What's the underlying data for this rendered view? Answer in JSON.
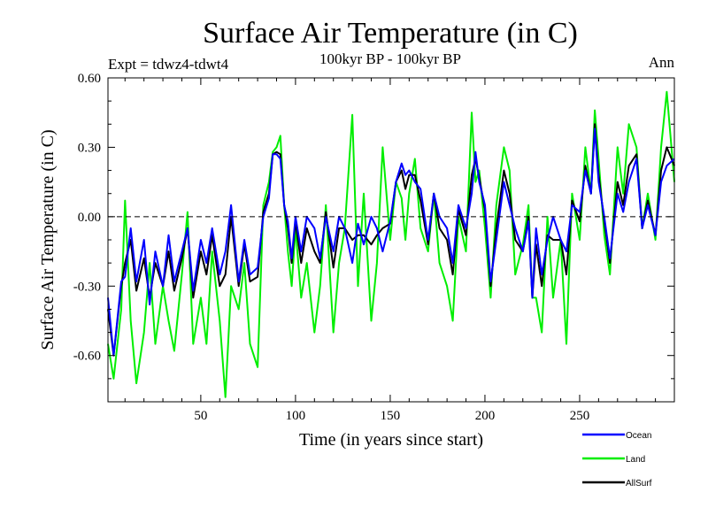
{
  "chart_data": {
    "type": "line",
    "title": "Surface Air Temperature (in C)",
    "subtitle": "100kyr BP - 100kyr BP",
    "left_note": "Expt = tdwz4-tdwt4",
    "right_note": "Ann",
    "xlabel": "Time (in years since start)",
    "ylabel": "Surface Air Temperature (in C)",
    "xlim": [
      1,
      300
    ],
    "ylim": [
      -0.8,
      0.6
    ],
    "xticks": [
      50,
      100,
      150,
      200,
      250
    ],
    "xtick_labels": [
      "50",
      "100",
      "150",
      "200",
      "250"
    ],
    "yticks": [
      -0.6,
      -0.3,
      0.0,
      0.3,
      0.6
    ],
    "ytick_labels": [
      "-0.60",
      "-0.30",
      "0.00",
      "0.30",
      "0.60"
    ],
    "zero_line": true,
    "grid": false,
    "legend_position": "bottom-right",
    "series": [
      {
        "name": "Ocean",
        "color": "#0000ff",
        "x": [
          1,
          4,
          8,
          10,
          13,
          16,
          20,
          23,
          26,
          30,
          33,
          36,
          40,
          43,
          46,
          50,
          53,
          56,
          60,
          63,
          66,
          70,
          73,
          76,
          80,
          83,
          86,
          88,
          90,
          92,
          94,
          96,
          98,
          100,
          103,
          106,
          110,
          113,
          116,
          120,
          123,
          126,
          130,
          133,
          136,
          140,
          143,
          146,
          150,
          153,
          156,
          158,
          160,
          163,
          166,
          170,
          173,
          176,
          180,
          183,
          186,
          190,
          193,
          195,
          197,
          200,
          203,
          206,
          210,
          213,
          216,
          220,
          223,
          225,
          227,
          230,
          233,
          236,
          240,
          243,
          246,
          250,
          253,
          256,
          258,
          260,
          263,
          266,
          270,
          273,
          276,
          280,
          283,
          286,
          290,
          293,
          296,
          300
        ],
        "y": [
          -0.35,
          -0.6,
          -0.28,
          -0.26,
          -0.05,
          -0.28,
          -0.1,
          -0.38,
          -0.15,
          -0.3,
          -0.08,
          -0.28,
          -0.15,
          -0.05,
          -0.32,
          -0.1,
          -0.2,
          -0.05,
          -0.25,
          -0.15,
          0.05,
          -0.28,
          -0.1,
          -0.25,
          -0.22,
          0.0,
          0.08,
          0.27,
          0.27,
          0.25,
          0.05,
          -0.02,
          -0.18,
          0.0,
          -0.15,
          0.0,
          -0.05,
          -0.18,
          0.0,
          -0.15,
          0.0,
          -0.05,
          -0.2,
          -0.03,
          -0.12,
          0.0,
          -0.05,
          -0.15,
          -0.02,
          0.15,
          0.23,
          0.18,
          0.2,
          0.15,
          0.12,
          -0.1,
          0.1,
          0.0,
          -0.05,
          -0.2,
          0.05,
          -0.05,
          0.1,
          0.28,
          0.15,
          0.05,
          -0.28,
          -0.1,
          0.15,
          0.05,
          -0.05,
          -0.15,
          -0.02,
          -0.35,
          -0.05,
          -0.25,
          -0.1,
          0.0,
          -0.1,
          -0.15,
          0.05,
          0.02,
          0.2,
          0.1,
          0.38,
          0.15,
          0.0,
          -0.18,
          0.1,
          0.02,
          0.15,
          0.25,
          -0.05,
          0.05,
          -0.08,
          0.15,
          0.22,
          0.25
        ]
      },
      {
        "name": "Land",
        "color": "#00ee00",
        "x": [
          1,
          4,
          8,
          10,
          13,
          16,
          20,
          23,
          26,
          30,
          33,
          36,
          40,
          43,
          46,
          50,
          53,
          56,
          60,
          63,
          66,
          70,
          73,
          76,
          80,
          83,
          86,
          88,
          90,
          92,
          94,
          96,
          98,
          100,
          103,
          106,
          110,
          113,
          116,
          120,
          123,
          126,
          130,
          133,
          136,
          140,
          143,
          146,
          150,
          153,
          156,
          158,
          160,
          163,
          166,
          170,
          173,
          176,
          180,
          183,
          186,
          190,
          193,
          195,
          197,
          200,
          203,
          206,
          210,
          213,
          216,
          220,
          223,
          225,
          227,
          230,
          233,
          236,
          240,
          243,
          246,
          250,
          253,
          256,
          258,
          260,
          263,
          266,
          270,
          273,
          276,
          280,
          283,
          286,
          290,
          293,
          296,
          300
        ],
        "y": [
          -0.55,
          -0.7,
          -0.4,
          0.07,
          -0.45,
          -0.72,
          -0.5,
          -0.2,
          -0.55,
          -0.3,
          -0.45,
          -0.58,
          -0.25,
          0.02,
          -0.55,
          -0.35,
          -0.55,
          -0.15,
          -0.45,
          -0.78,
          -0.3,
          -0.4,
          -0.2,
          -0.55,
          -0.65,
          0.05,
          0.15,
          0.28,
          0.3,
          0.35,
          0.05,
          -0.15,
          -0.3,
          -0.05,
          -0.35,
          -0.2,
          -0.5,
          -0.3,
          0.05,
          -0.5,
          -0.2,
          -0.05,
          0.44,
          -0.3,
          0.1,
          -0.45,
          -0.2,
          0.3,
          -0.1,
          0.15,
          0.08,
          -0.1,
          0.1,
          0.25,
          -0.05,
          -0.15,
          0.1,
          -0.2,
          -0.3,
          -0.45,
          0.0,
          -0.15,
          0.45,
          0.15,
          0.2,
          -0.05,
          -0.35,
          0.05,
          0.3,
          0.2,
          -0.25,
          -0.12,
          0.05,
          -0.35,
          -0.35,
          -0.5,
          0.0,
          -0.35,
          -0.1,
          -0.55,
          0.1,
          -0.1,
          0.3,
          0.1,
          0.46,
          0.25,
          -0.08,
          -0.25,
          0.3,
          0.1,
          0.4,
          0.3,
          -0.05,
          0.1,
          -0.1,
          0.3,
          0.54,
          0.15
        ]
      },
      {
        "name": "AllSurf",
        "color": "#000000",
        "x": [
          1,
          4,
          8,
          10,
          13,
          16,
          20,
          23,
          26,
          30,
          33,
          36,
          40,
          43,
          46,
          50,
          53,
          56,
          60,
          63,
          66,
          70,
          73,
          76,
          80,
          83,
          86,
          88,
          90,
          92,
          94,
          96,
          98,
          100,
          103,
          106,
          110,
          113,
          116,
          120,
          123,
          126,
          130,
          133,
          136,
          140,
          143,
          146,
          150,
          153,
          156,
          158,
          160,
          163,
          166,
          170,
          173,
          176,
          180,
          183,
          186,
          190,
          193,
          195,
          197,
          200,
          203,
          206,
          210,
          213,
          216,
          220,
          223,
          225,
          227,
          230,
          233,
          236,
          240,
          243,
          246,
          250,
          253,
          256,
          258,
          260,
          263,
          266,
          270,
          273,
          276,
          280,
          283,
          286,
          290,
          293,
          296,
          300
        ],
        "y": [
          -0.4,
          -0.6,
          -0.3,
          -0.2,
          -0.1,
          -0.32,
          -0.18,
          -0.35,
          -0.2,
          -0.3,
          -0.15,
          -0.32,
          -0.18,
          -0.05,
          -0.35,
          -0.15,
          -0.25,
          -0.08,
          -0.3,
          -0.25,
          0.0,
          -0.3,
          -0.12,
          -0.28,
          -0.26,
          0.02,
          0.1,
          0.27,
          0.28,
          0.27,
          0.05,
          -0.05,
          -0.2,
          -0.02,
          -0.2,
          -0.05,
          -0.15,
          -0.2,
          0.02,
          -0.22,
          -0.05,
          -0.05,
          -0.1,
          -0.08,
          -0.08,
          -0.12,
          -0.08,
          -0.05,
          -0.03,
          0.15,
          0.2,
          0.12,
          0.18,
          0.18,
          0.07,
          -0.12,
          0.1,
          -0.05,
          -0.1,
          -0.25,
          0.03,
          -0.08,
          0.18,
          0.25,
          0.17,
          0.03,
          -0.3,
          -0.05,
          0.2,
          0.1,
          -0.1,
          -0.15,
          0.0,
          -0.35,
          -0.12,
          -0.3,
          -0.08,
          -0.1,
          -0.1,
          -0.25,
          0.07,
          -0.02,
          0.22,
          0.1,
          0.4,
          0.18,
          -0.02,
          -0.2,
          0.15,
          0.05,
          0.22,
          0.27,
          -0.05,
          0.07,
          -0.08,
          0.2,
          0.3,
          0.22
        ]
      }
    ]
  }
}
